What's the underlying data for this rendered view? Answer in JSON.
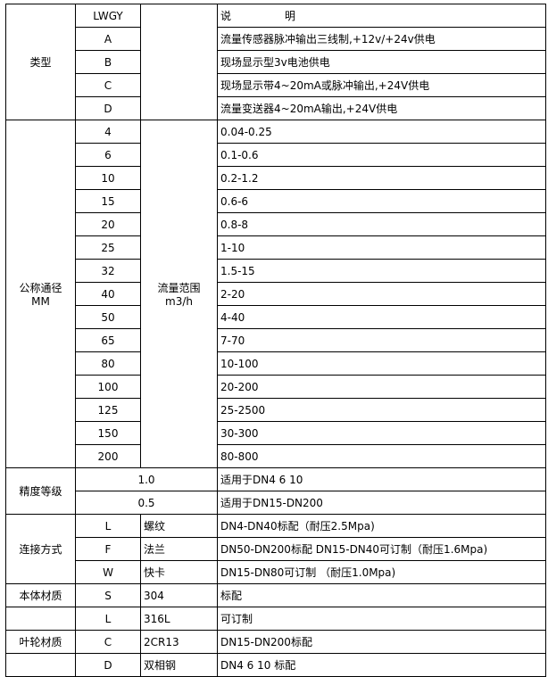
{
  "header": {
    "code": "LWGY",
    "desc_a": "说",
    "desc_b": "明"
  },
  "type": {
    "label": "类型",
    "rows": [
      {
        "code": "A",
        "desc": "流量传感器脉冲输出三线制,+12v/+24v供电"
      },
      {
        "code": "B",
        "desc": "现场显示型3v电池供电"
      },
      {
        "code": "C",
        "desc": "现场显示带4~20mA或脉冲输出,+24V供电"
      },
      {
        "code": "D",
        "desc": "流量变送器4~20mA输出,+24V供电"
      }
    ]
  },
  "diameter": {
    "label_1": "公称通径",
    "label_2": "MM",
    "range_label_1": "流量范围",
    "range_label_2": "m3/h",
    "rows": [
      {
        "dn": "4",
        "range": "0.04-0.25"
      },
      {
        "dn": "6",
        "range": "0.1-0.6"
      },
      {
        "dn": "10",
        "range": "0.2-1.2"
      },
      {
        "dn": "15",
        "range": "0.6-6"
      },
      {
        "dn": "20",
        "range": "0.8-8"
      },
      {
        "dn": "25",
        "range": "1-10"
      },
      {
        "dn": "32",
        "range": "1.5-15"
      },
      {
        "dn": "40",
        "range": "2-20"
      },
      {
        "dn": "50",
        "range": "4-40"
      },
      {
        "dn": "65",
        "range": "7-70"
      },
      {
        "dn": "80",
        "range": "10-100"
      },
      {
        "dn": "100",
        "range": "20-200"
      },
      {
        "dn": "125",
        "range": "25-2500"
      },
      {
        "dn": "150",
        "range": "30-300"
      },
      {
        "dn": "200",
        "range": "80-800"
      }
    ]
  },
  "accuracy": {
    "label": "精度等级",
    "rows": [
      {
        "grade": "1.0",
        "desc": "适用于DN4  6  10"
      },
      {
        "grade": "0.5",
        "desc": "适用于DN15-DN200"
      }
    ]
  },
  "connection": {
    "label": "连接方式",
    "rows": [
      {
        "code": "L",
        "name": "螺纹",
        "desc": "DN4-DN40标配（耐压2.5Mpa)"
      },
      {
        "code": "F",
        "name": "法兰",
        "desc": "DN50-DN200标配 DN15-DN40可订制（耐压1.6Mpa)"
      },
      {
        "code": "W",
        "name": "快卡",
        "desc": "DN15-DN80可订制 （耐压1.0Mpa)"
      }
    ]
  },
  "body_material": {
    "label": "本体材质",
    "rows": [
      {
        "code": "S",
        "name": "304",
        "desc": "标配"
      },
      {
        "code": "L",
        "name": "316L",
        "desc": "可订制"
      }
    ]
  },
  "impeller_material": {
    "label": "叶轮材质",
    "rows": [
      {
        "code": "C",
        "name": "2CR13",
        "desc": "DN15-DN200标配"
      },
      {
        "code": "D",
        "name": "双相钢",
        "desc": "DN4 6 10 标配"
      }
    ]
  }
}
